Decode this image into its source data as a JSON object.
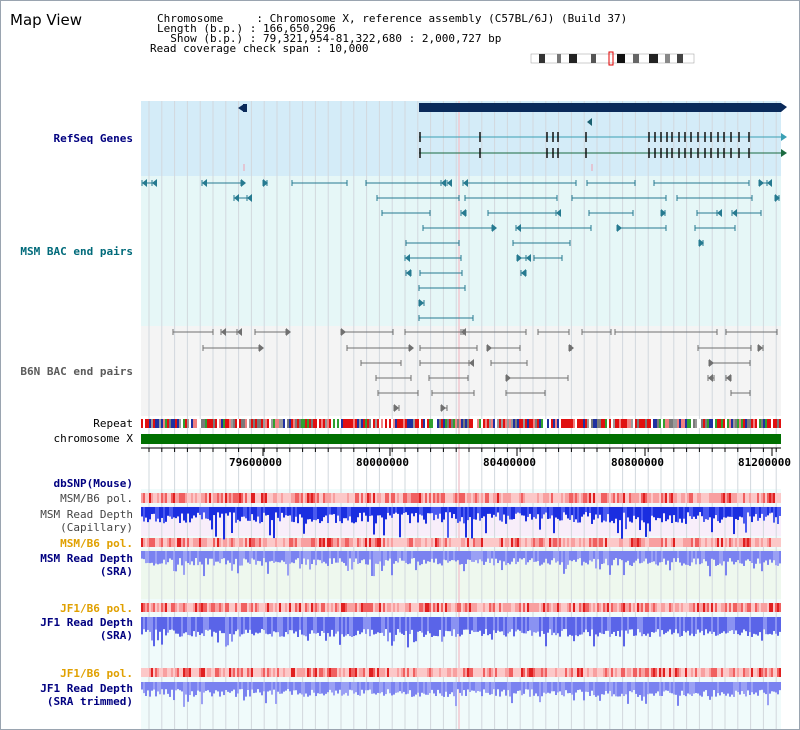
{
  "header": {
    "title": "Map View",
    "info_lines": [
      "Chromosome     : Chromosome X, reference assembly (C57BL/6J) (Build 37)",
      "Length (b.p.) : 166,650,296",
      "  Show (b.p.) : 79,321,954-81,322,680 : 2,000,727 bp",
      "Read coverage check span : 10,000"
    ]
  },
  "tracks": {
    "refseq": "RefSeq Genes",
    "msm_bac": "MSM BAC end pairs",
    "b6n_bac": "B6N BAC end pairs",
    "repeat": "Repeat",
    "chromosome": "chromosome X",
    "dbsnp": "dbSNP(Mouse)",
    "msm_b6_pol_1": "MSM/B6 pol.",
    "msm_read_depth_cap": "MSM Read Depth\n(Capillary)",
    "msm_b6_pol_2": "MSM/B6 pol.",
    "msm_read_depth_sra": "MSM Read Depth\n(SRA)",
    "jf1_b6_pol_1": "JF1/B6 pol.",
    "jf1_read_depth_sra": "JF1 Read Depth\n(SRA)",
    "jf1_b6_pol_2": "JF1/B6 pol.",
    "jf1_read_depth_trimmed": "JF1 Read Depth\n(SRA trimmed)"
  },
  "axis": {
    "ticks": [
      "79600000",
      "80000000",
      "80400000",
      "80800000",
      "81200000"
    ]
  },
  "colors": {
    "refseq_bg": "#d4ecf8",
    "msm_bg": "#e6f7f7",
    "b6n_bg": "#f4f4f4",
    "gene_dark": "#0a2a5a",
    "gene_line": "#1a6070",
    "bac_msm": "#267a90",
    "bac_b6n": "#707070",
    "chromosome_bar": "#007000",
    "label_navy": "#000080",
    "label_teal": "#006a7a",
    "label_orange": "#e0a000",
    "depth_blue": "#1a2ee0",
    "depth_light": "#7a82f0"
  }
}
